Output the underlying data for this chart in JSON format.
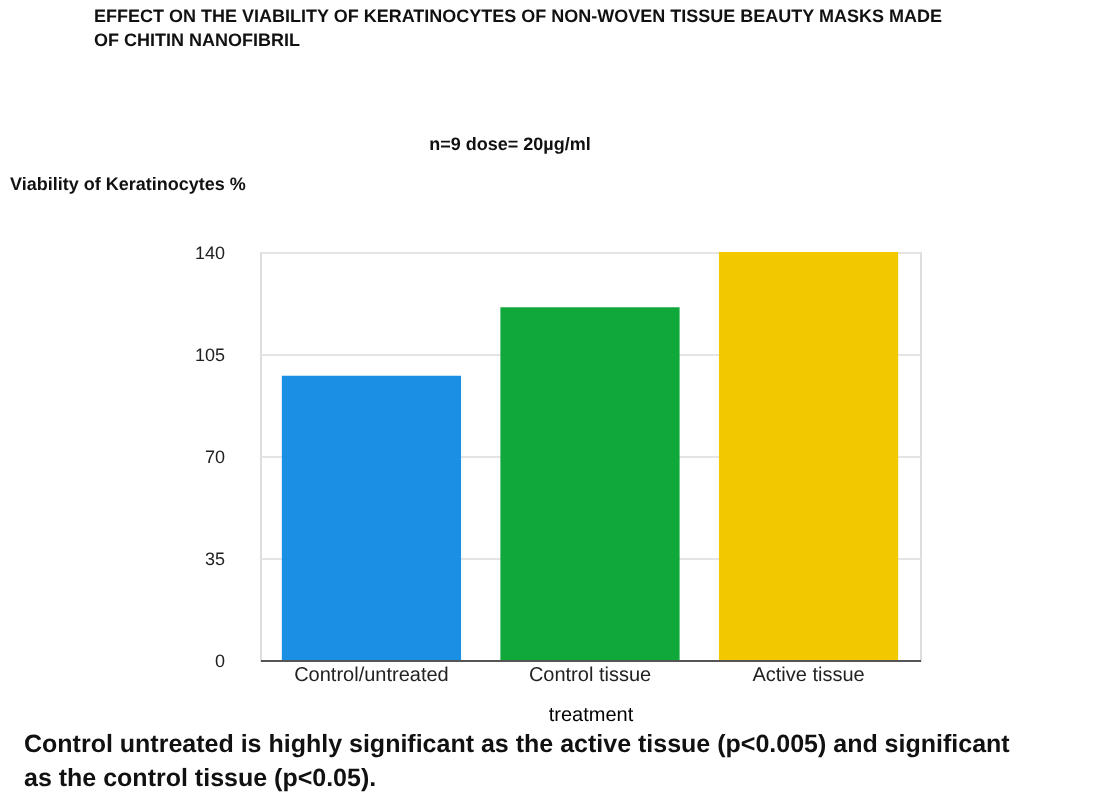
{
  "chart_data": {
    "type": "bar",
    "title": "EFFECT ON THE VIABILITY OF KERATINOCYTES OF NON-WOVEN TISSUE BEAUTY MASKS MADE OF CHITIN NANOFIBRIL",
    "subtitle": "n=9          dose=  20µg/ml",
    "ylabel": "Viability of Keratinocytes %",
    "xlabel": "treatment",
    "categories": [
      "Control/untreated",
      "Control tissue",
      "Active tissue"
    ],
    "values": [
      97.5,
      121,
      140
    ],
    "colors": [
      "#1a8fe3",
      "#10a83a",
      "#f2c800"
    ],
    "ylim": [
      0,
      140
    ],
    "yticks": [
      0,
      35,
      70,
      105,
      140
    ],
    "grid": "y",
    "annotations": [
      "Control untreated is highly significant as the active tissue (p<0.005) and significant as the control tissue (p<0.05)."
    ]
  }
}
